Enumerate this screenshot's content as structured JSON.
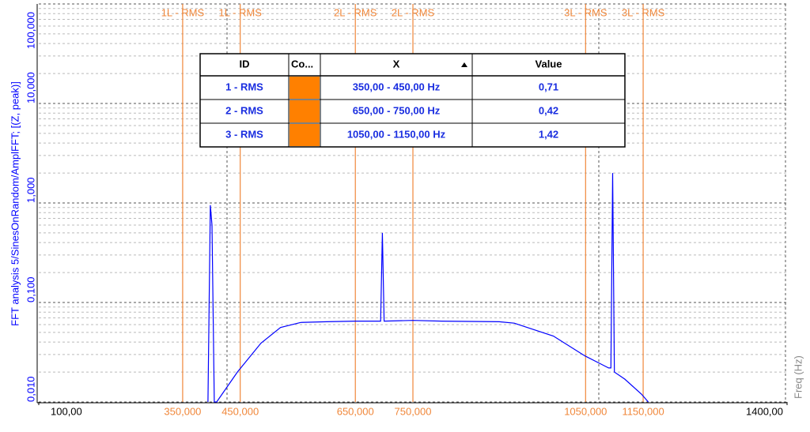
{
  "chart_data": {
    "type": "line",
    "y_label": "FFT analysis 5/SinesOnRandom/AmplFFT; [(Z, peak)]",
    "x_label": "Freq (Hz)",
    "log_y": true,
    "grid": true,
    "xlim": [
      100,
      1400
    ],
    "ylim": [
      0.01,
      100
    ],
    "xticks": [
      {
        "value": 100,
        "label": "100,00"
      },
      {
        "value": 1400,
        "label": "1400,00"
      }
    ],
    "yticks": [
      {
        "value": 0.01,
        "label": "0,010"
      },
      {
        "value": 0.1,
        "label": "0,100"
      },
      {
        "value": 1,
        "label": "1,000"
      },
      {
        "value": 10,
        "label": "10,000"
      },
      {
        "value": 100,
        "label": "100,000"
      }
    ],
    "color": "#0000ff",
    "x": [
      394,
      398,
      401,
      405,
      409,
      445,
      486,
      520,
      555,
      600,
      650,
      694,
      697,
      700,
      750,
      800,
      900,
      926,
      994,
      1049,
      1090,
      1094,
      1097,
      1100,
      1118,
      1147,
      1159
    ],
    "values": [
      0.01,
      0.95,
      0.6,
      0.01,
      0.01,
      0.02,
      0.039,
      0.056,
      0.063,
      0.064,
      0.065,
      0.065,
      0.5,
      0.065,
      0.066,
      0.065,
      0.064,
      0.062,
      0.046,
      0.029,
      0.022,
      0.022,
      2.0,
      0.02,
      0.017,
      0.012,
      0.01
    ],
    "band_color": "#f0873a",
    "band_lines": [
      {
        "label": "1L - RMS",
        "position": {
          "value": 350,
          "label": "350,000"
        }
      },
      {
        "label": "1L - RMS",
        "position": {
          "value": 450,
          "label": "450,000"
        }
      },
      {
        "label": "2L - RMS",
        "position": {
          "value": 650,
          "label": "650,000"
        }
      },
      {
        "label": "2L - RMS",
        "position": {
          "value": 750,
          "label": "750,000"
        }
      },
      {
        "label": "3L - RMS",
        "position": {
          "value": 1050,
          "label": "1050,000"
        }
      },
      {
        "label": "3L - RMS",
        "position": {
          "value": 1150,
          "label": "1150,000"
        }
      }
    ]
  },
  "table": {
    "columns": [
      "ID",
      "Co...",
      "X",
      "Value"
    ],
    "swatch_color": "#ff8000",
    "rows": [
      [
        "1 - RMS",
        "350,00 - 450,00 Hz",
        "0,71"
      ],
      [
        "2 - RMS",
        "650,00 - 750,00 Hz",
        "0,42"
      ],
      [
        "3 - RMS",
        "1050,00 - 1150,00 Hz",
        "1,42"
      ]
    ]
  }
}
